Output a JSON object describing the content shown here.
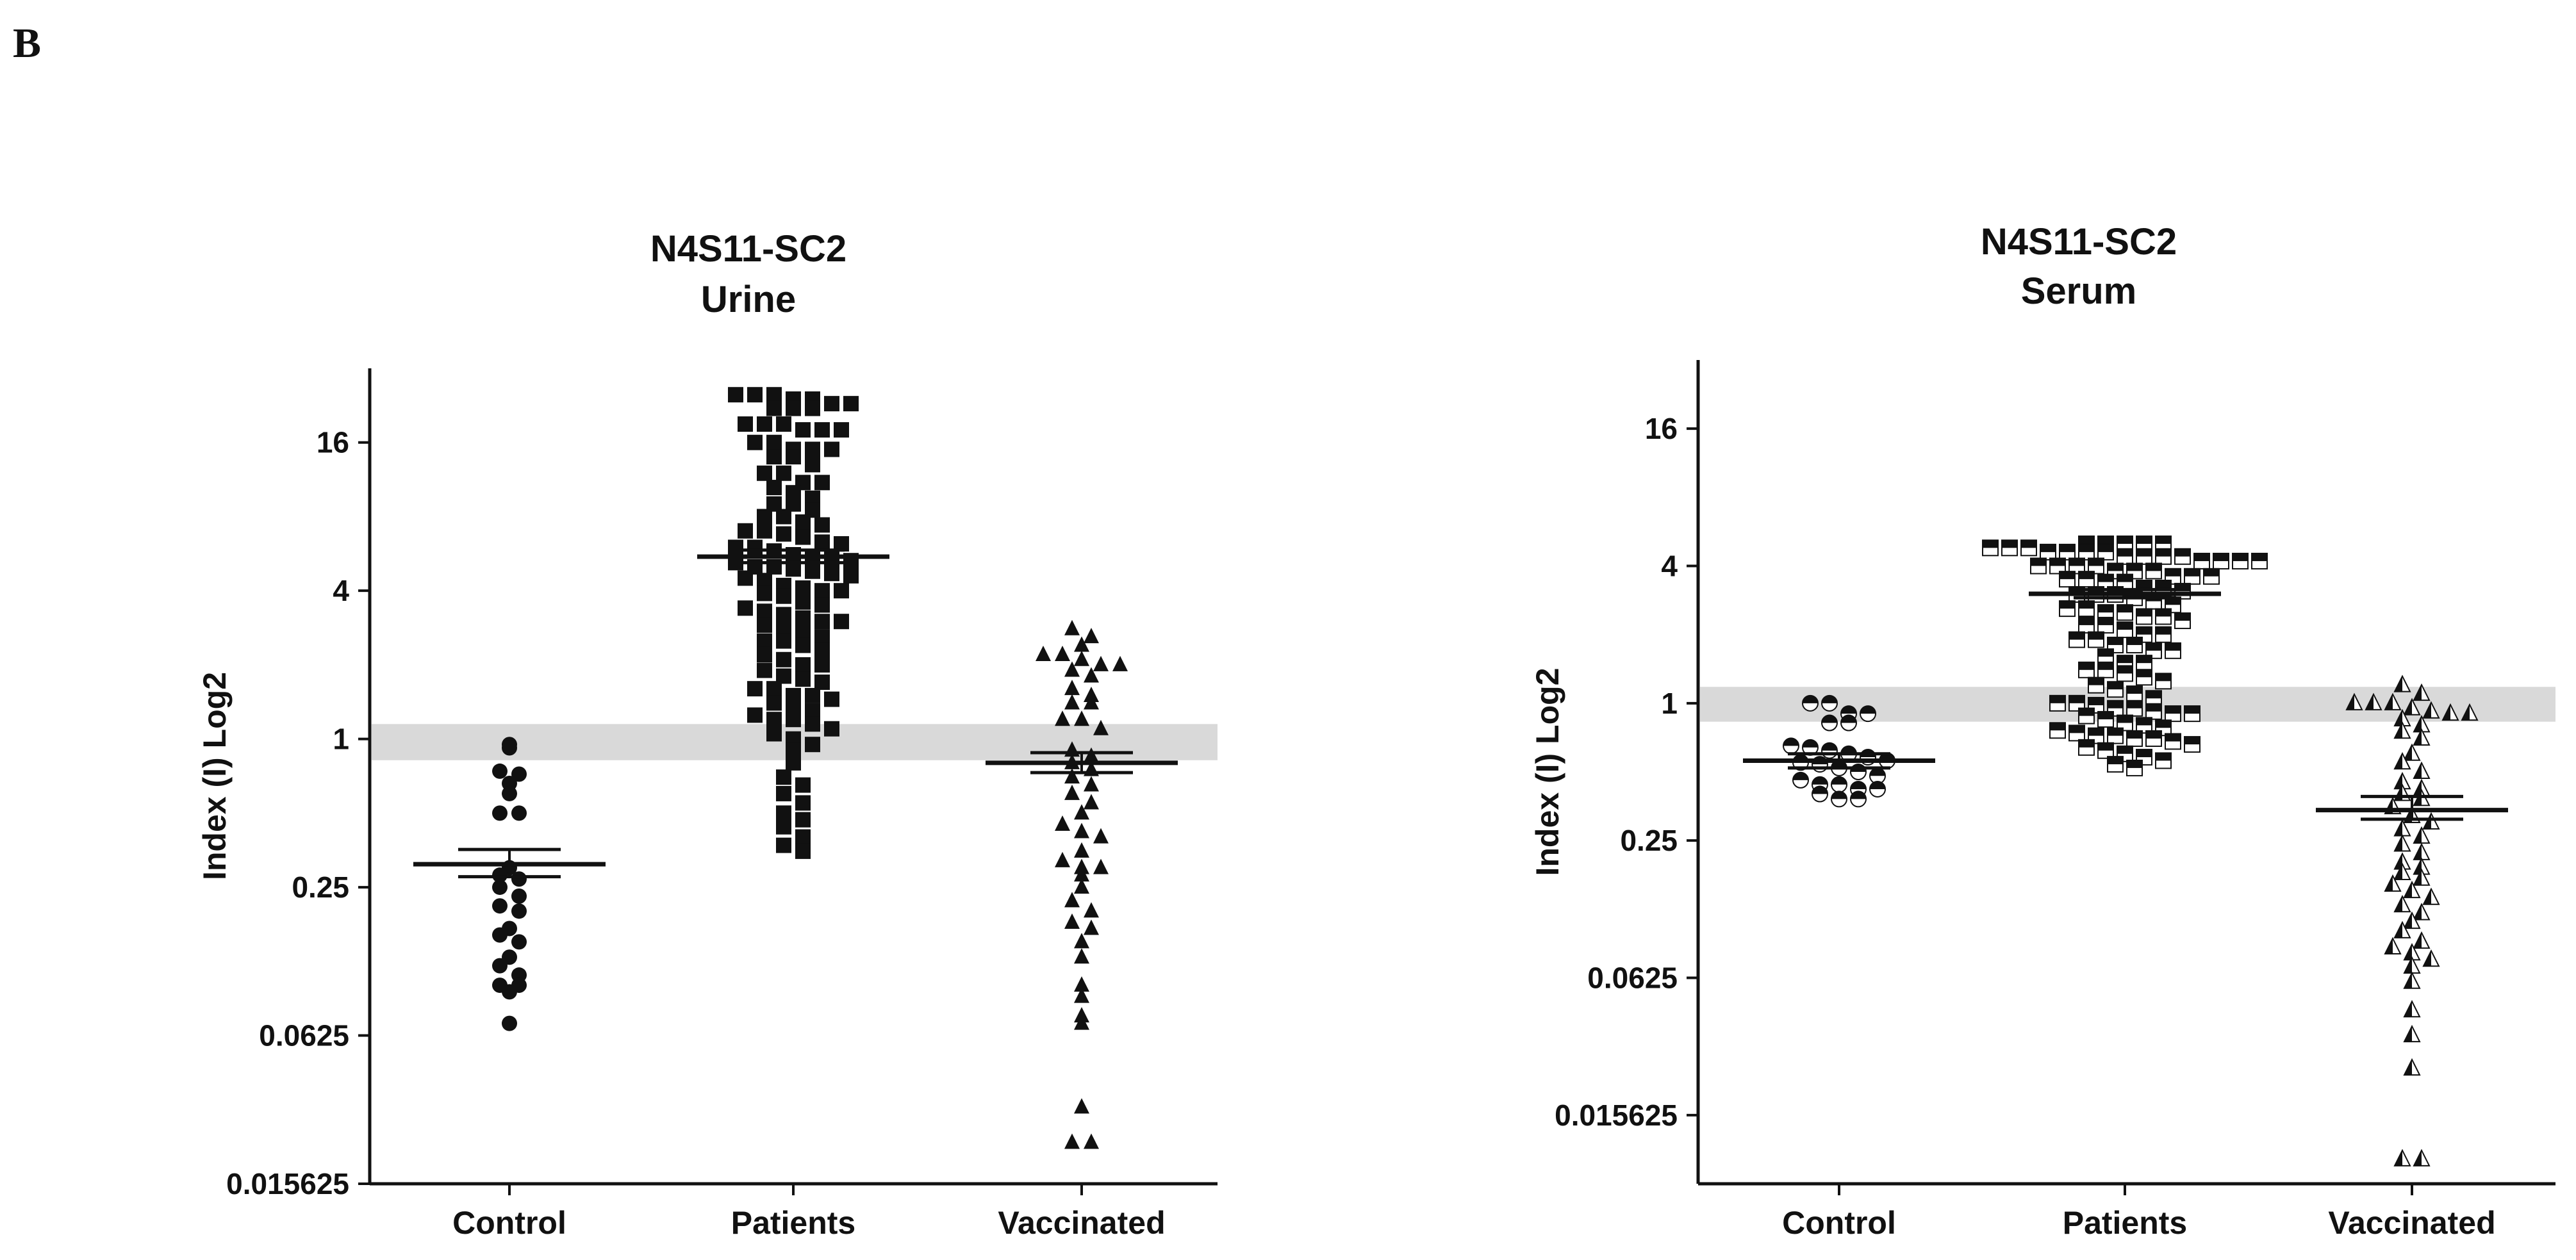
{
  "panel_label": "B",
  "colors": {
    "band": "#d9d9d9",
    "ink": "#111111",
    "half_fill": "#ffffff"
  },
  "chart_data": [
    {
      "type": "scatter",
      "title": [
        "N4S11-SC2",
        "Urine"
      ],
      "ylabel": "Index (I)  Log2",
      "y_scale": "log2",
      "ylim": [
        0.015625,
        32
      ],
      "y_ticks": [
        16,
        4,
        1,
        0.25,
        0.0625,
        0.015625
      ],
      "y_tick_labels": [
        "16",
        "4",
        "1",
        "0.25",
        "0.0625",
        "0.015625"
      ],
      "categories": [
        "Control",
        "Patients",
        "Vaccinated"
      ],
      "cutoff_band": [
        0.82,
        1.15
      ],
      "series": [
        {
          "category": "Control",
          "marker": "circle",
          "values": [
            0.95,
            0.92,
            0.74,
            0.72,
            0.66,
            0.6,
            0.5,
            0.5,
            0.3,
            0.28,
            0.27,
            0.25,
            0.23,
            0.21,
            0.2,
            0.17,
            0.16,
            0.15,
            0.13,
            0.12,
            0.11,
            0.1,
            0.1,
            0.094,
            0.07
          ],
          "mean": 0.31,
          "sem": [
            0.276,
            0.356
          ]
        },
        {
          "category": "Patients",
          "marker": "square",
          "values": [
            25,
            25,
            25,
            24,
            24,
            23,
            23,
            22,
            22,
            22,
            19,
            19,
            19,
            18,
            18,
            18,
            16,
            16,
            15,
            15,
            15,
            14,
            14,
            13,
            12,
            12,
            11,
            11,
            10.5,
            10,
            9.5,
            9,
            9,
            8.5,
            8,
            8,
            7.6,
            7.4,
            7,
            7,
            6.8,
            6.6,
            6.3,
            6.2,
            6,
            6,
            5.8,
            5.6,
            5.5,
            5.4,
            5.3,
            5.2,
            5,
            5,
            4.9,
            4.8,
            4.7,
            4.6,
            4.5,
            4.4,
            4.2,
            4.1,
            4,
            4,
            3.9,
            3.8,
            3.6,
            3.5,
            3.4,
            3.3,
            3.2,
            3.1,
            3,
            3,
            2.9,
            2.8,
            2.7,
            2.6,
            2.5,
            2.5,
            2.4,
            2.3,
            2.2,
            2.1,
            2,
            2,
            1.9,
            1.8,
            1.75,
            1.7,
            1.6,
            1.6,
            1.5,
            1.5,
            1.45,
            1.4,
            1.35,
            1.3,
            1.25,
            1.2,
            1.2,
            1.15,
            1.1,
            1.05,
            1,
            0.95,
            0.9,
            0.8,
            0.7,
            0.65,
            0.6,
            0.55,
            0.5,
            0.47,
            0.44,
            0.4,
            0.37,
            0.35
          ],
          "mean": 5.5,
          "sem": [
            5.2,
            5.85
          ]
        },
        {
          "category": "Vaccinated",
          "marker": "triangle",
          "values": [
            2.8,
            2.6,
            2.4,
            2.2,
            2.2,
            2.1,
            2,
            2,
            1.9,
            1.8,
            1.6,
            1.5,
            1.4,
            1.4,
            1.2,
            1.2,
            1.1,
            0.9,
            0.85,
            0.8,
            0.75,
            0.7,
            0.65,
            0.6,
            0.55,
            0.5,
            0.45,
            0.42,
            0.4,
            0.35,
            0.32,
            0.3,
            0.3,
            0.28,
            0.25,
            0.22,
            0.2,
            0.18,
            0.17,
            0.15,
            0.13,
            0.1,
            0.09,
            0.075,
            0.07,
            0.032,
            0.023,
            0.023
          ],
          "mean": 0.8,
          "sem": [
            0.73,
            0.88
          ]
        }
      ]
    },
    {
      "type": "scatter",
      "title": [
        "N4S11-SC2",
        "Serum"
      ],
      "ylabel": "Index (I)  Log2",
      "y_scale": "log2",
      "ylim": [
        0.0078125,
        32
      ],
      "y_ticks": [
        16,
        4,
        1,
        0.25,
        0.0625,
        0.015625
      ],
      "y_tick_labels": [
        "16",
        "4",
        "1",
        "0.25",
        "0.0625",
        "0.015625"
      ],
      "categories": [
        "Control",
        "Patients",
        "Vaccinated"
      ],
      "cutoff_band": [
        0.83,
        1.18
      ],
      "series": [
        {
          "category": "Control",
          "marker": "half-circle",
          "values": [
            1,
            1,
            0.9,
            0.9,
            0.82,
            0.82,
            0.65,
            0.64,
            0.62,
            0.6,
            0.58,
            0.56,
            0.55,
            0.54,
            0.52,
            0.5,
            0.48,
            0.46,
            0.44,
            0.44,
            0.42,
            0.42,
            0.4,
            0.38,
            0.38
          ],
          "mean": 0.56,
          "sem": [
            0.52,
            0.6
          ]
        },
        {
          "category": "Patients",
          "marker": "half-square",
          "values": [
            5,
            5,
            5,
            5,
            5,
            4.8,
            4.8,
            4.8,
            4.6,
            4.6,
            4.6,
            4.6,
            4.4,
            4.4,
            4.4,
            4.4,
            4.2,
            4.2,
            4.2,
            4.2,
            4,
            4,
            4,
            4,
            3.8,
            3.8,
            3.8,
            3.6,
            3.6,
            3.6,
            3.5,
            3.5,
            3.4,
            3.4,
            3.2,
            3.2,
            3.1,
            3,
            3,
            3,
            2.9,
            2.8,
            2.7,
            2.6,
            2.6,
            2.5,
            2.5,
            2.4,
            2.4,
            2.3,
            2.2,
            2.2,
            2.1,
            2,
            2,
            1.9,
            1.9,
            1.8,
            1.8,
            1.7,
            1.7,
            1.6,
            1.5,
            1.5,
            1.4,
            1.4,
            1.35,
            1.3,
            1.25,
            1.2,
            1.15,
            1.1,
            1.05,
            1,
            1,
            0.98,
            0.95,
            0.95,
            0.92,
            0.9,
            0.9,
            0.88,
            0.85,
            0.82,
            0.8,
            0.78,
            0.76,
            0.74,
            0.72,
            0.72,
            0.7,
            0.7,
            0.68,
            0.66,
            0.64,
            0.62,
            0.6,
            0.58,
            0.56,
            0.54,
            0.52
          ],
          "mean": 3.02,
          "sem": [
            2.9,
            3.15
          ]
        },
        {
          "category": "Vaccinated",
          "marker": "half-triangle",
          "values": [
            1.2,
            1.1,
            1,
            1,
            1,
            0.95,
            0.92,
            0.9,
            0.9,
            0.85,
            0.8,
            0.75,
            0.7,
            0.6,
            0.55,
            0.5,
            0.45,
            0.42,
            0.4,
            0.38,
            0.35,
            0.32,
            0.3,
            0.28,
            0.26,
            0.24,
            0.22,
            0.2,
            0.19,
            0.18,
            0.17,
            0.16,
            0.15,
            0.14,
            0.13,
            0.12,
            0.11,
            0.1,
            0.09,
            0.085,
            0.08,
            0.075,
            0.07,
            0.06,
            0.045,
            0.035,
            0.025,
            0.01,
            0.01
          ],
          "mean": 0.34,
          "sem": [
            0.31,
            0.39
          ]
        }
      ]
    }
  ]
}
